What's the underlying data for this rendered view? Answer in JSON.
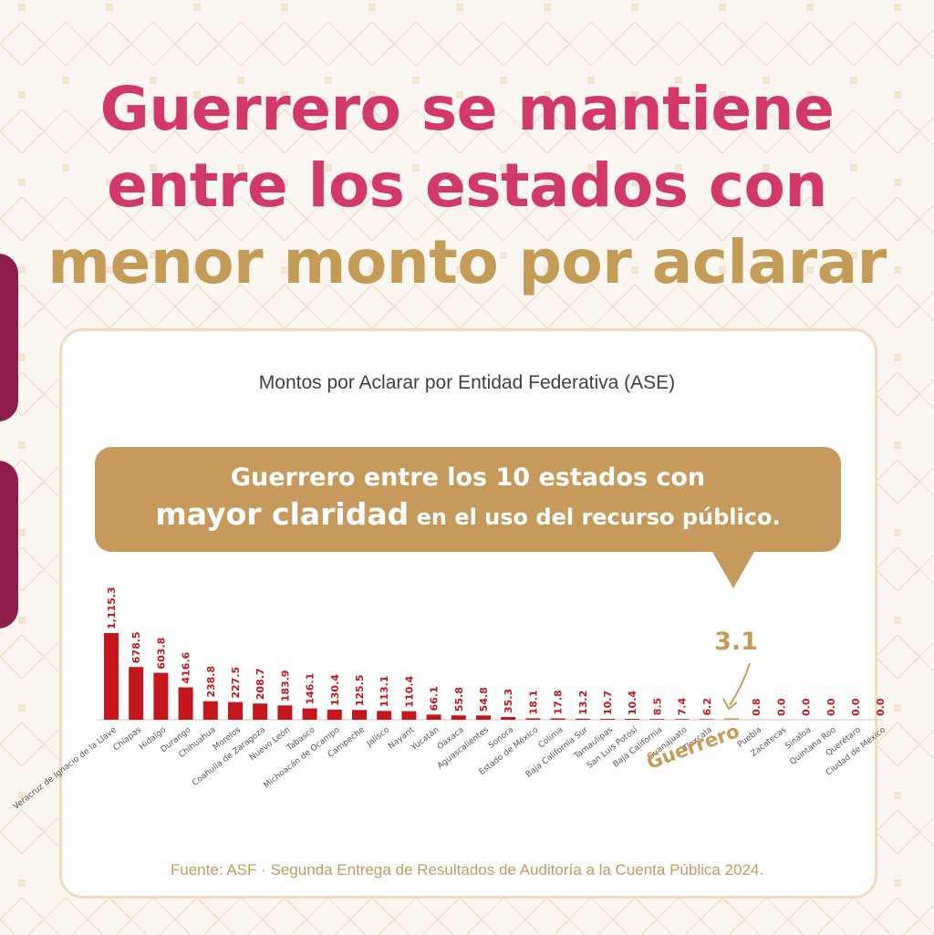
{
  "title": {
    "line1": "Guerrero se mantiene",
    "line2": "entre los estados con",
    "line3": "menor monto por aclarar"
  },
  "colors": {
    "pink": "#d2386a",
    "gold": "#c59c57",
    "bar": "#c4161c",
    "side_tab": "#8e1d4c"
  },
  "callout": {
    "line1": "Guerrero entre los 10 estados con",
    "line2_emph": "mayor claridad",
    "line2_rest": " en el uso del recurso público."
  },
  "chart_data": {
    "type": "bar",
    "title": "Montos por Aclarar por Entidad Federativa (ASE)",
    "xlabel": "",
    "ylabel": "",
    "categories": [
      "Veracruz de Ignacio de la Llave",
      "Chiapas",
      "Hidalgo",
      "Durango",
      "Chihuahua",
      "Morelos",
      "Coahuila de Zaragoza",
      "Nuevo León",
      "Tabasco",
      "Michoacán de Ocampo",
      "Campeche",
      "Jalisco",
      "Nayarit",
      "Yucatán",
      "Oaxaca",
      "Aguascalientes",
      "Sonora",
      "Estado de México",
      "Colima",
      "Baja California Sur",
      "Tamaulipas",
      "San Luis Potosí",
      "Baja California",
      "Guanajuato",
      "Tlaxcala",
      "Guerrero",
      "Puebla",
      "Zacatecas",
      "Sinaloa",
      "Quintana Roo",
      "Querétaro",
      "Ciudad de México"
    ],
    "values": [
      1115.3,
      678.5,
      603.8,
      416.6,
      238.8,
      227.5,
      208.7,
      183.9,
      146.1,
      130.4,
      125.5,
      113.1,
      110.4,
      66.1,
      55.8,
      54.8,
      35.3,
      18.1,
      17.8,
      13.2,
      10.7,
      10.4,
      8.5,
      7.4,
      6.2,
      3.1,
      0.8,
      0.0,
      0.0,
      0.0,
      0.0,
      0.0
    ],
    "value_labels": [
      "1,115.3",
      "678.5",
      "603.8",
      "416.6",
      "238.8",
      "227.5",
      "208.7",
      "183.9",
      "146.1",
      "130.4",
      "125.5",
      "113.1",
      "110.4",
      "66.1",
      "55.8",
      "54.8",
      "35.3",
      "18.1",
      "17.8",
      "13.2",
      "10.7",
      "10.4",
      "8.5",
      "7.4",
      "6.2",
      "3.1",
      "0.8",
      "0.0",
      "0.0",
      "0.0",
      "0.0",
      "0.0"
    ],
    "ylim": [
      0,
      1115.3
    ],
    "grid": false,
    "highlight": {
      "category": "Guerrero",
      "label": "Guerrero",
      "value_label": "3.1"
    }
  },
  "source": "Fuente: ASF · Segunda Entrega de Resultados de Auditoría a la Cuenta Pública 2024."
}
